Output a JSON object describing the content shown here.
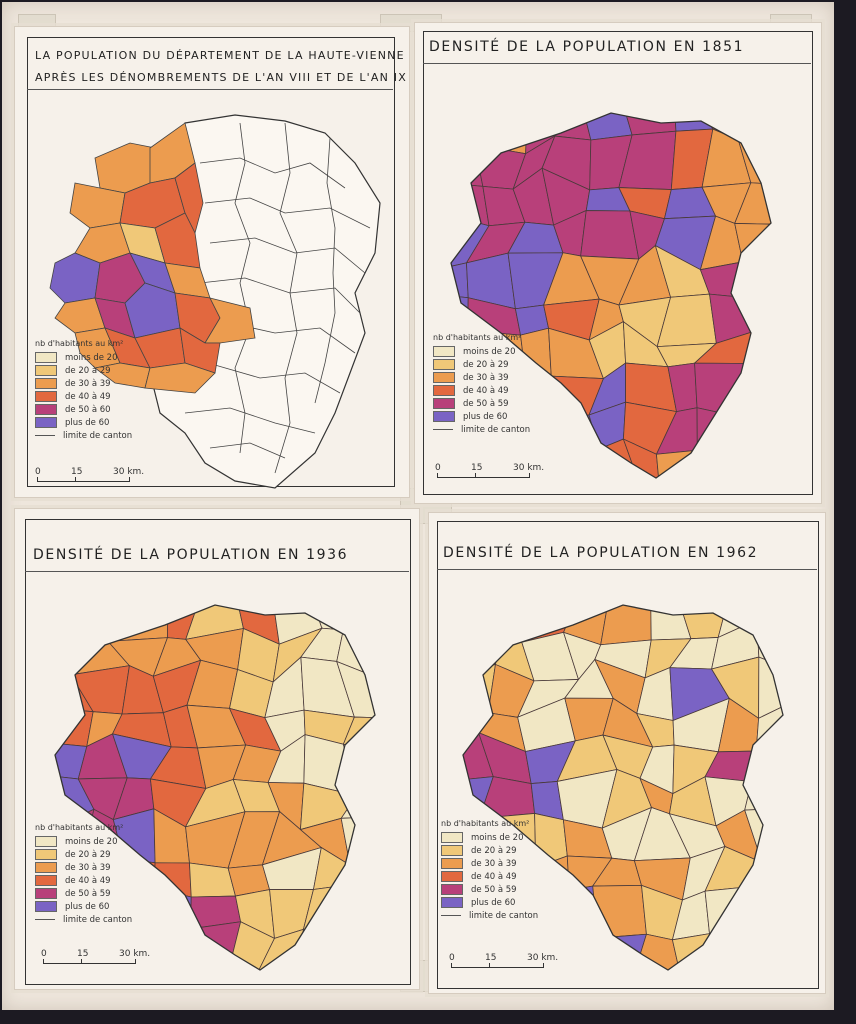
{
  "colors": {
    "c1": "#f1e7c4",
    "c2": "#f0c878",
    "c3": "#ec9c4f",
    "c4": "#e2683f",
    "c5": "#b8407a",
    "c6": "#7a63c4",
    "blank": "#fbf7f1"
  },
  "panels": [
    {
      "title_line1": "LA POPULATION DU DÉPARTEMENT DE LA HAUTE-VIENNE",
      "title_line2": "APRÈS LES DÉNOMBREMENTS DE L'AN VIII ET DE L'AN IX",
      "legend": {
        "heading": "nb d'habitants au km²",
        "items": [
          "moins de 20",
          "de 20 à 29",
          "de 30 à 39",
          "de 40 à 49",
          "de 50 à 60",
          "plus de 60"
        ],
        "limit": "limite de canton"
      },
      "scale": {
        "t0": "0",
        "t1": "15",
        "t2": "30 km."
      }
    },
    {
      "title": "DENSITÉ DE LA POPULATION EN 1851",
      "legend": {
        "heading": "nb d'habitants au km²",
        "items": [
          "moins de 20",
          "de 20 à 29",
          "de 30 à 39",
          "de 40 à 49",
          "de 50 à 59",
          "plus de 60"
        ],
        "limit": "limite de canton"
      },
      "scale": {
        "t0": "0",
        "t1": "15",
        "t2": "30 km."
      }
    },
    {
      "title": "DENSITÉ DE LA POPULATION EN 1936",
      "legend": {
        "heading": "nb d'habitants au km²",
        "items": [
          "moins de 20",
          "de 20 à 29",
          "de 30 à 39",
          "de 40 à 49",
          "de 50 à 59",
          "plus de 60"
        ],
        "limit": "limite de canton"
      },
      "scale": {
        "t0": "0",
        "t1": "15",
        "t2": "30 km."
      }
    },
    {
      "title": "DENSITÉ DE LA POPULATION EN 1962",
      "legend": {
        "heading": "nb d'habitants au km²",
        "items": [
          "moins de 20",
          "de 20 à 29",
          "de 30 à 39",
          "de 40 à 49",
          "de 50 à 59",
          "plus de 60"
        ],
        "limit": "limite de canton"
      },
      "scale": {
        "t0": "0",
        "t1": "15",
        "t2": "30 km."
      }
    }
  ]
}
